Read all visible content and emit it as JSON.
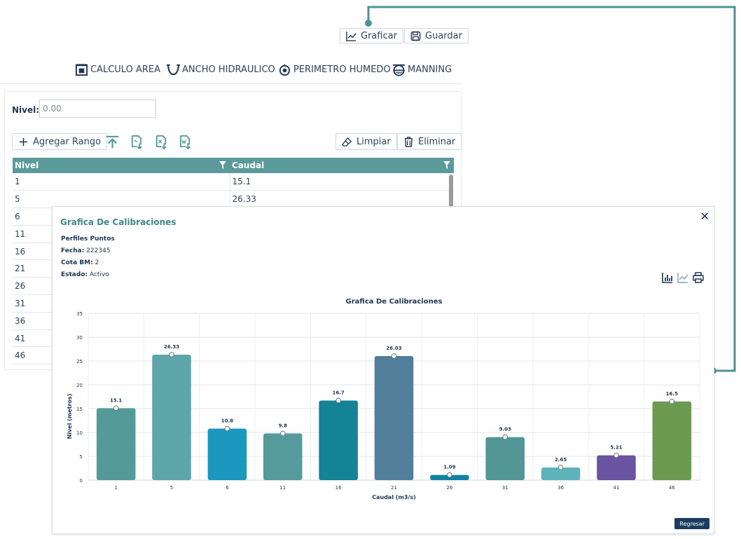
{
  "toolbar": {
    "graficar": "Graficar",
    "guardar": "Guardar",
    "calculo_area": "CALCULO AREA",
    "ancho_hidraulico": "ANCHO HIDRAULICO",
    "perimetro_humedo": "PERIMETRO HUMEDO",
    "manning": "MANNING"
  },
  "form": {
    "nivel_label": "Nivel:",
    "nivel_value": "0.00",
    "agregar_rango": "Agregar Rango",
    "limpiar": "Limpiar",
    "eliminar": "Eliminar"
  },
  "table": {
    "headers": [
      "Nivel",
      "Caudal"
    ],
    "rows": [
      [
        "1",
        "15.1"
      ],
      [
        "5",
        "26.33"
      ],
      [
        "6",
        ""
      ],
      [
        "11",
        ""
      ],
      [
        "16",
        ""
      ],
      [
        "21",
        ""
      ],
      [
        "26",
        ""
      ],
      [
        "31",
        ""
      ],
      [
        "36",
        ""
      ],
      [
        "41",
        ""
      ],
      [
        "46",
        ""
      ]
    ]
  },
  "modal": {
    "title": "Grafica De Calibraciones",
    "perfil": "Perfiles Puntos",
    "fecha_label": "Fecha:",
    "fecha": "222345",
    "cota_label": "Cota BM:",
    "cota": "2",
    "estado_label": "Estado:",
    "estado": "Activo",
    "close": "✕",
    "regresar": "Regresar"
  },
  "colors": {
    "accent": "#5a9a9a",
    "connector": "#4e9394",
    "dark": "#1b3d5e"
  },
  "chart_data": {
    "type": "bar",
    "title": "Grafica De Calibraciones",
    "xlabel": "Caudal (m3/s)",
    "ylabel": "Nivel (metros)",
    "ylim": [
      0,
      35
    ],
    "yticks": [
      0,
      5,
      10,
      15,
      20,
      25,
      30,
      35
    ],
    "grid": true,
    "categories": [
      "1",
      "5",
      "6",
      "11",
      "16",
      "21",
      "26",
      "31",
      "36",
      "41",
      "46"
    ],
    "values": [
      15.1,
      26.33,
      10.8,
      9.8,
      16.7,
      26.03,
      1.09,
      9.03,
      2.65,
      5.21,
      16.5
    ],
    "labels": [
      "15.1",
      "26.33",
      "10.8",
      "9.8",
      "16.7",
      "26.03",
      "1.09",
      "9.03",
      "2.65",
      "5.21",
      "16.5"
    ],
    "colors": [
      "#549a99",
      "#5fa6aa",
      "#1c97bd",
      "#559b9b",
      "#138395",
      "#517f9a",
      "#0f83a1",
      "#539696",
      "#5eb3ba",
      "#6a53a0",
      "#6c9a51"
    ]
  }
}
